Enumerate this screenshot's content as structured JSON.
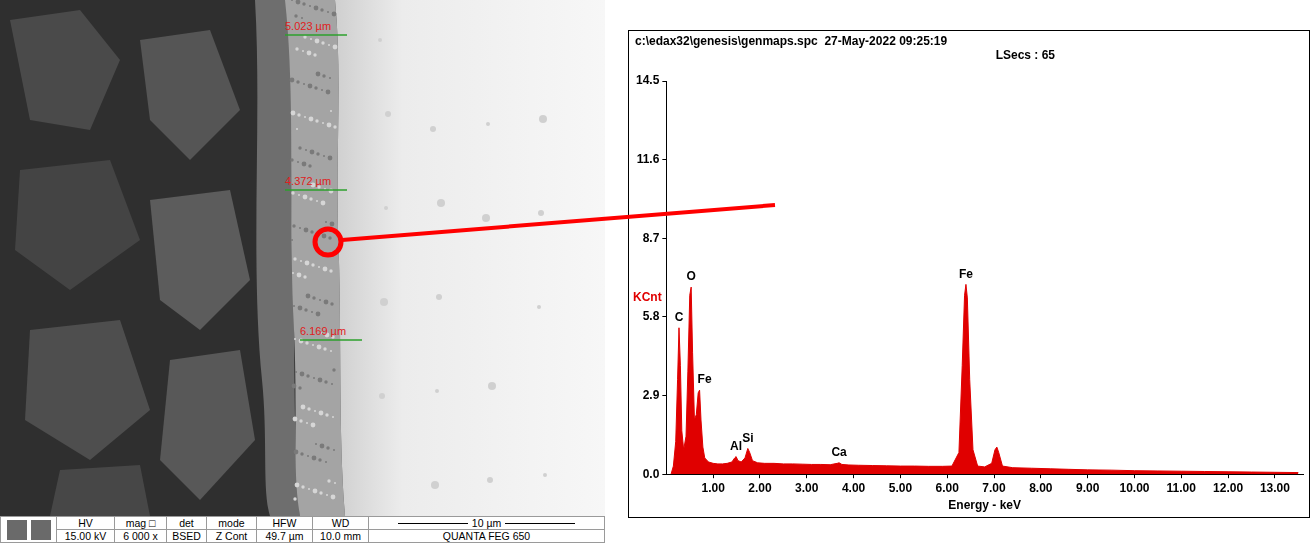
{
  "micrograph": {
    "measurements": [
      "5.023 µm",
      "4.372 µm",
      "6.169 µm"
    ],
    "info_bar": {
      "headers": [
        "HV",
        "mag □",
        "det",
        "mode",
        "HFW",
        "WD"
      ],
      "values": [
        "15.00 kV",
        "6 000 x",
        "BSED",
        "Z Cont",
        "49.7 µm",
        "10.0 mm"
      ],
      "scale_bar": "10 µm",
      "instrument": "QUANTA FEG 650"
    }
  },
  "chart_data": {
    "type": "area",
    "title": "c:\\edax32\\genesis\\genmaps.spc  27-May-2022 09:25:19",
    "subtitle": "LSecs : 65",
    "x_label": "Energy - keV",
    "y_label": "KCnt",
    "color": "#e00000",
    "grid": false,
    "x": [
      0.1,
      0.15,
      0.2,
      0.24,
      0.27,
      0.3,
      0.33,
      0.37,
      0.42,
      0.46,
      0.5,
      0.53,
      0.56,
      0.6,
      0.64,
      0.68,
      0.71,
      0.74,
      0.78,
      0.82,
      0.9,
      1.0,
      1.1,
      1.2,
      1.3,
      1.4,
      1.46,
      1.49,
      1.53,
      1.6,
      1.68,
      1.74,
      1.78,
      1.84,
      1.95,
      2.1,
      2.3,
      2.5,
      2.7,
      2.9,
      3.1,
      3.3,
      3.5,
      3.65,
      3.69,
      3.75,
      3.9,
      4.1,
      4.4,
      4.7,
      5.0,
      5.3,
      5.6,
      5.9,
      6.1,
      6.25,
      6.32,
      6.37,
      6.4,
      6.43,
      6.48,
      6.55,
      6.65,
      6.8,
      6.95,
      7.02,
      7.06,
      7.1,
      7.18,
      7.4,
      7.8,
      8.2,
      8.6,
      9.0,
      9.5,
      10.0,
      10.5,
      11.0,
      11.5,
      12.0,
      12.5,
      13.0,
      13.5
    ],
    "values": [
      0.0,
      0.3,
      1.2,
      3.5,
      5.4,
      4.0,
      1.6,
      0.9,
      1.4,
      3.8,
      6.6,
      6.9,
      4.5,
      2.0,
      2.2,
      3.0,
      3.1,
      2.0,
      1.0,
      0.6,
      0.45,
      0.4,
      0.38,
      0.38,
      0.4,
      0.45,
      0.6,
      0.65,
      0.5,
      0.45,
      0.6,
      0.95,
      0.8,
      0.5,
      0.42,
      0.4,
      0.4,
      0.38,
      0.38,
      0.37,
      0.36,
      0.36,
      0.35,
      0.4,
      0.42,
      0.36,
      0.34,
      0.33,
      0.32,
      0.31,
      0.3,
      0.3,
      0.29,
      0.29,
      0.3,
      0.8,
      4.0,
      6.6,
      7.0,
      6.5,
      3.5,
      0.9,
      0.3,
      0.27,
      0.4,
      0.9,
      1.0,
      0.8,
      0.3,
      0.24,
      0.22,
      0.2,
      0.18,
      0.16,
      0.15,
      0.13,
      0.12,
      0.11,
      0.1,
      0.09,
      0.08,
      0.07,
      0.06
    ],
    "xlim": [
      0,
      13.6
    ],
    "xticks": [
      {
        "value": 1,
        "label": "1.00"
      },
      {
        "value": 2,
        "label": "2.00"
      },
      {
        "value": 3,
        "label": "3.00"
      },
      {
        "value": 4,
        "label": "4.00"
      },
      {
        "value": 5,
        "label": "5.00"
      },
      {
        "value": 6,
        "label": "6.00"
      },
      {
        "value": 7,
        "label": "7.00"
      },
      {
        "value": 8,
        "label": "8.00"
      },
      {
        "value": 9,
        "label": "9.00"
      },
      {
        "value": 10,
        "label": "10.00"
      },
      {
        "value": 11,
        "label": "11.00"
      },
      {
        "value": 12,
        "label": "12.00"
      },
      {
        "value": 13,
        "label": "13.00"
      }
    ],
    "ylim": [
      0,
      14.5
    ],
    "yticks": [
      {
        "value": 0,
        "label": "0.0"
      },
      2.9,
      5.8,
      8.7,
      11.6,
      14.5
    ],
    "annotations": [
      {
        "text": "C",
        "x": 0.27,
        "y": 5.4
      },
      {
        "text": "O",
        "x": 0.53,
        "y": 6.9
      },
      {
        "text": "Fe",
        "x": 0.71,
        "y": 3.1
      },
      {
        "text": "Al",
        "x": 1.49,
        "y": 0.65
      },
      {
        "text": "Si",
        "x": 1.74,
        "y": 0.95
      },
      {
        "text": "Ca",
        "x": 3.69,
        "y": 0.42
      },
      {
        "text": "Fe",
        "x": 6.4,
        "y": 7.0
      }
    ]
  }
}
